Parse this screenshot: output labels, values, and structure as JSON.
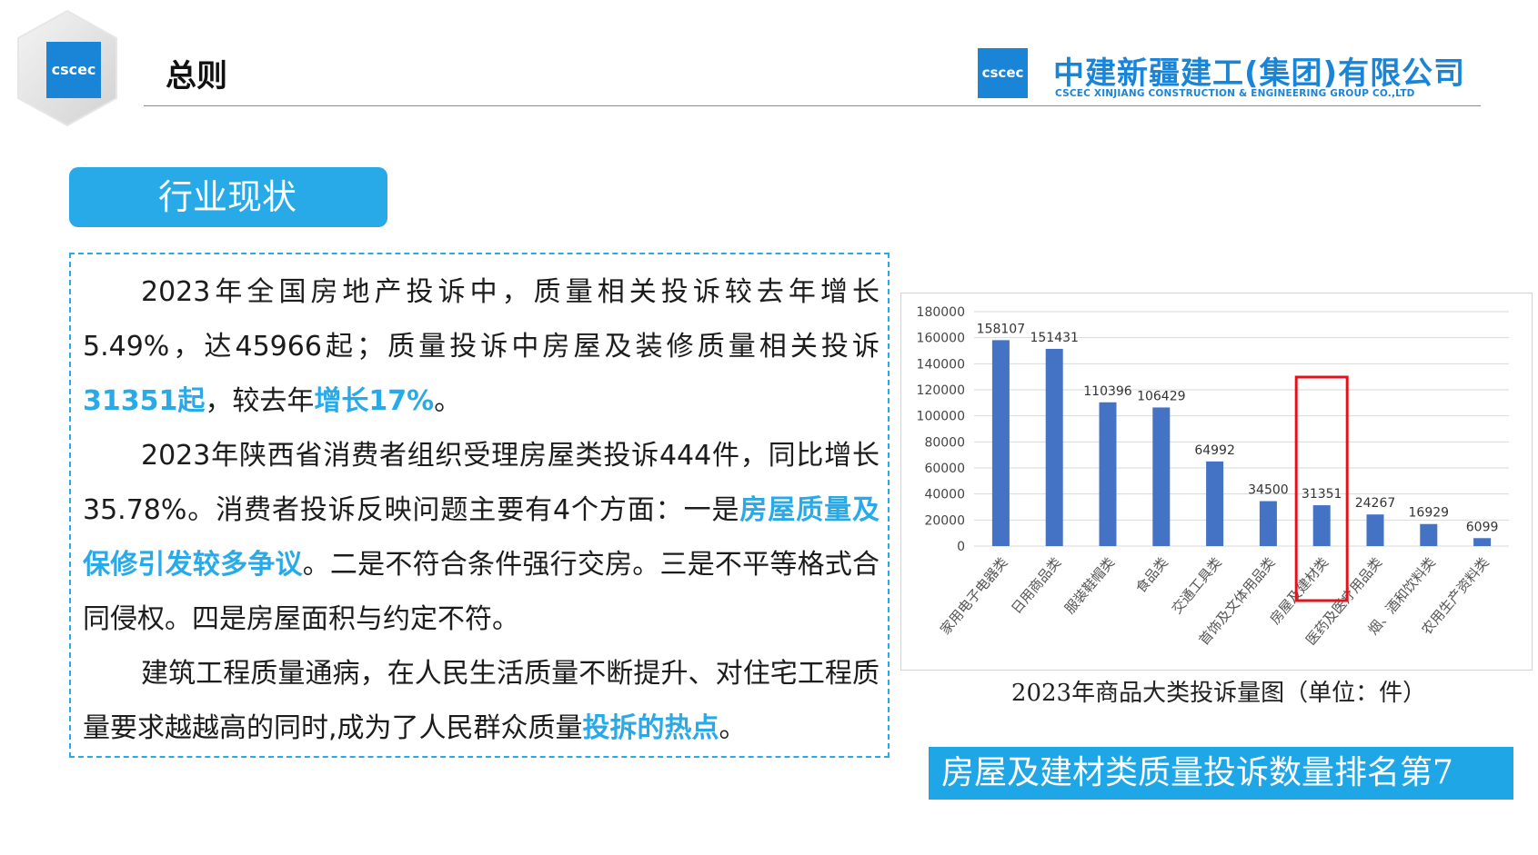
{
  "header": {
    "title": "总则",
    "logo_mark": "cscec",
    "company_cn": "中建新疆建工(集团)有限公司",
    "company_en": "CSCEC XINJIANG CONSTRUCTION & ENGINEERING GROUP CO.,LTD"
  },
  "section": {
    "tab_label": "行业现状"
  },
  "body": {
    "p1": {
      "t1": "2023年全国房地产投诉中，质量相关投诉较去年增长5.49%，达45966起；质量投诉中房屋及装修质量相关投诉",
      "h1": "31351起",
      "t2": "，较去年",
      "h2": "增长17%",
      "t3": "。"
    },
    "p2": {
      "t1": "2023年陕西省消费者组织受理房屋类投诉444件，同比增长35.78%。消费者投诉反映问题主要有4个方面：一是",
      "h1": "房屋质量及保修引发较多争议",
      "t2": "。二是不符合条件强行交房。三是不平等格式合同侵权。四是房屋面积与约定不符。"
    },
    "p3": {
      "t1": "建筑工程质量通病，在人民生活质量不断提升、对住宅工程质量要求越越高的同时,成为了人民群众质量",
      "h1": "投拆的热点",
      "t2": "。"
    }
  },
  "chart_data": {
    "type": "bar",
    "categories": [
      "家用电子电器类",
      "日用商品类",
      "服装鞋帽类",
      "食品类",
      "交通工具类",
      "首饰及文体用品类",
      "房屋及建材类",
      "医药及医疗用品类",
      "烟、酒和饮料类",
      "农用生产资料类"
    ],
    "values": [
      158107,
      151431,
      110396,
      106429,
      64992,
      34500,
      31351,
      24267,
      16929,
      6099
    ],
    "y_ticks": [
      "0",
      "20000",
      "40000",
      "60000",
      "80000",
      "100000",
      "120000",
      "140000",
      "160000",
      "180000"
    ],
    "ylim": [
      0,
      180000
    ],
    "grid": true,
    "highlight_index": 6,
    "bar_color": "#4472c4",
    "highlight_color": "#e0141c"
  },
  "chart_caption": "2023年商品大类投诉量图（单位：件）",
  "rank_banner": "房屋及建材类质量投诉数量排名第7"
}
